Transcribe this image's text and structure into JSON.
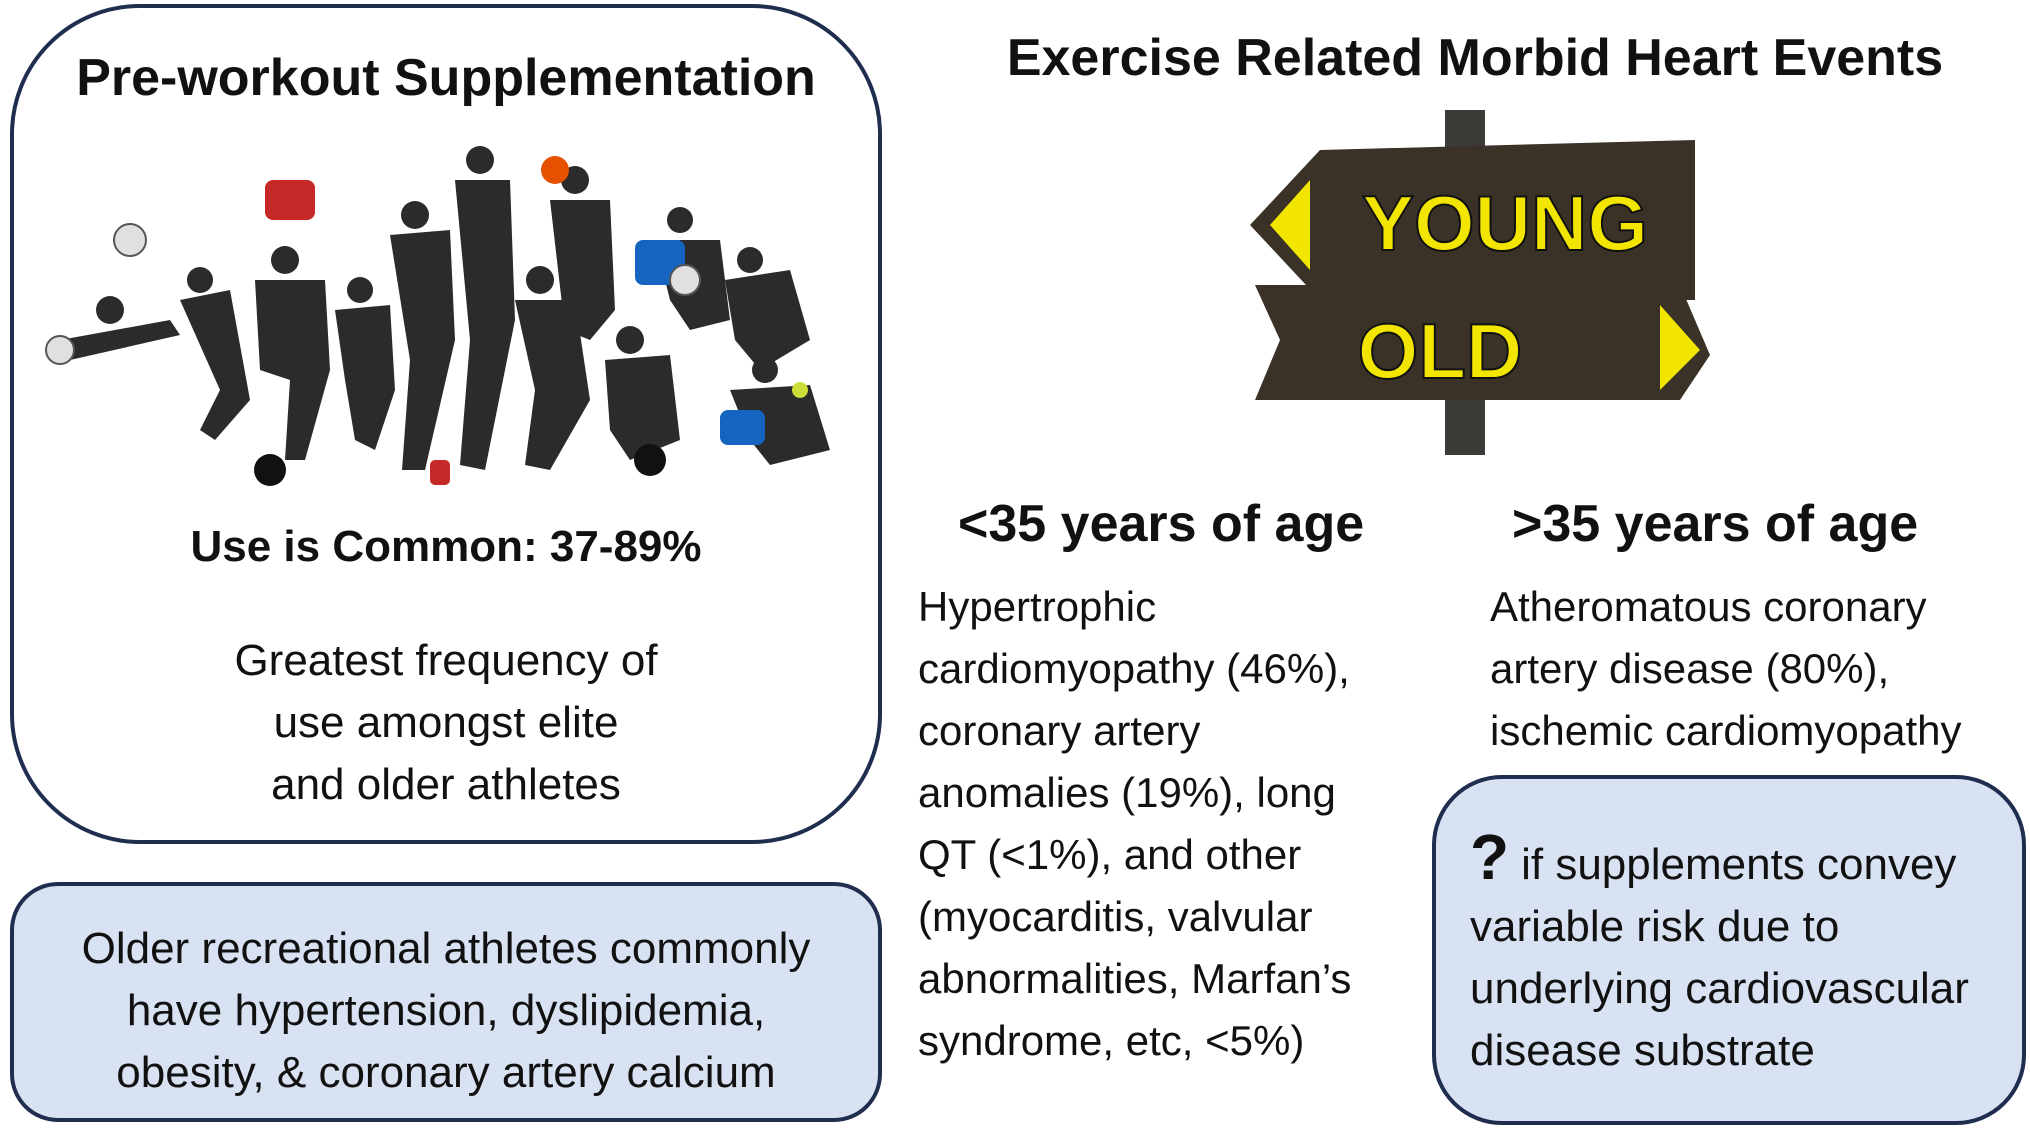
{
  "left_panel": {
    "title": "Pre-workout Supplementation",
    "stat": "Use is Common:  37-89%",
    "frequency_lines": [
      "Greatest frequency of",
      "use amongst elite",
      "and older athletes"
    ],
    "image_icon": "athletes-collage"
  },
  "left_bottom": {
    "lines": [
      "Older recreational athletes commonly",
      "have hypertension, dyslipidemia,",
      "obesity, & coronary artery calcium"
    ]
  },
  "right_panel": {
    "title": "Exercise Related Morbid Heart Events",
    "signpost": {
      "icon": "signpost",
      "top_sign": "YOUNG",
      "bottom_sign": "OLD"
    },
    "young": {
      "heading": "<35 years of age",
      "lines": [
        "Hypertrophic",
        "cardiomyopathy (46%),",
        "coronary artery",
        "anomalies (19%), long",
        "QT (<1%), and other",
        "(myocarditis, valvular",
        "abnormalities, Marfan’s",
        "syndrome, etc, <5%)"
      ]
    },
    "old": {
      "heading": ">35 years of age",
      "lines": [
        "Atheromatous coronary",
        "artery disease (80%),",
        "ischemic cardiomyopathy"
      ]
    }
  },
  "right_bottom": {
    "qmark": "?",
    "lines": [
      "if supplements convey",
      "variable risk due to",
      "underlying cardiovascular",
      "disease substrate"
    ]
  },
  "colors": {
    "box_border": "#1f2d4f",
    "box_fill": "#d8e2f2",
    "sign_yellow": "#f2e600",
    "sign_wood": "#3a3226"
  }
}
